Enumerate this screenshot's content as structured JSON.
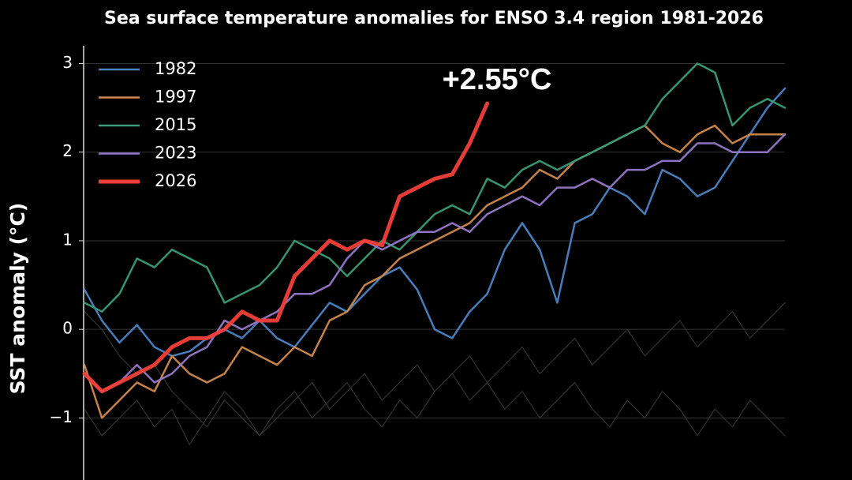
{
  "chart_data": {
    "type": "line",
    "title": "Sea surface temperature anomalies for ENSO 3.4 region 1981-2026",
    "y_label": "SST anomaly (°C)",
    "annotation": "+2.55°C",
    "ylim": [
      -1.7,
      3.2
    ],
    "yticks": [
      {
        "value": -1,
        "label": "−1"
      },
      0,
      1,
      2,
      3
    ],
    "grid": true,
    "legend": "upper left",
    "series": [
      {
        "color": "#3a3a3a",
        "linewidth": 1,
        "values": [
          -0.9,
          -1.2,
          -1.0,
          -0.8,
          -1.1,
          -0.9,
          -1.3,
          -1.0,
          -0.7,
          -0.9,
          -1.2,
          -1.0,
          -0.8,
          -0.6,
          -0.9,
          -0.7,
          -0.5,
          -0.8,
          -0.6,
          -0.4,
          -0.7,
          -0.5,
          -0.3,
          -0.6,
          -0.4,
          -0.2,
          -0.5,
          -0.3,
          -0.1,
          -0.4,
          -0.2,
          0.0,
          -0.3,
          -0.1,
          0.1,
          -0.2,
          0.0,
          0.2,
          -0.1,
          0.1,
          0.3
        ]
      },
      {
        "color": "#3a3a3a",
        "linewidth": 1,
        "values": [
          0.2,
          0.0,
          -0.3,
          -0.5,
          -0.4,
          -0.7,
          -0.9,
          -1.1,
          -0.8,
          -1.0,
          -1.2,
          -0.9,
          -0.7,
          -1.0,
          -0.8,
          -0.6,
          -0.9,
          -1.1,
          -0.8,
          -1.0,
          -0.7,
          -0.5,
          -0.8,
          -0.6,
          -0.9,
          -0.7,
          -1.0,
          -0.8,
          -0.6,
          -0.9,
          -1.1,
          -0.8,
          -1.0,
          -0.7,
          -0.9,
          -1.2,
          -0.9,
          -1.1,
          -0.8,
          -1.0,
          -1.2
        ]
      },
      {
        "name": "1982",
        "color": "#4c84c4",
        "linewidth": 2.5,
        "values": [
          0.45,
          0.1,
          -0.15,
          0.05,
          -0.2,
          -0.3,
          -0.25,
          -0.1,
          0.0,
          -0.1,
          0.1,
          -0.1,
          -0.2,
          0.05,
          0.3,
          0.2,
          0.4,
          0.6,
          0.7,
          0.45,
          0.0,
          -0.1,
          0.2,
          0.4,
          0.9,
          1.2,
          0.9,
          0.3,
          1.2,
          1.3,
          1.6,
          1.5,
          1.3,
          1.8,
          1.7,
          1.5,
          1.6,
          1.9,
          2.2,
          2.5,
          2.72
        ]
      },
      {
        "name": "1997",
        "color": "#d08a4c",
        "linewidth": 2.5,
        "values": [
          -0.4,
          -1.0,
          -0.8,
          -0.6,
          -0.7,
          -0.3,
          -0.5,
          -0.6,
          -0.5,
          -0.2,
          -0.3,
          -0.4,
          -0.2,
          -0.3,
          0.1,
          0.2,
          0.5,
          0.6,
          0.8,
          0.9,
          1.0,
          1.1,
          1.2,
          1.4,
          1.5,
          1.6,
          1.8,
          1.7,
          1.9,
          2.0,
          2.1,
          2.2,
          2.3,
          2.1,
          2.0,
          2.2,
          2.3,
          2.1,
          2.2,
          2.2,
          2.2
        ]
      },
      {
        "name": "2015",
        "color": "#3a9c78",
        "linewidth": 2.5,
        "values": [
          0.3,
          0.2,
          0.4,
          0.8,
          0.7,
          0.9,
          0.8,
          0.7,
          0.3,
          0.4,
          0.5,
          0.7,
          1.0,
          0.9,
          0.8,
          0.6,
          0.8,
          1.0,
          0.9,
          1.1,
          1.3,
          1.4,
          1.3,
          1.7,
          1.6,
          1.8,
          1.9,
          1.8,
          1.9,
          2.0,
          2.1,
          2.2,
          2.3,
          2.6,
          2.8,
          3.0,
          2.9,
          2.3,
          2.5,
          2.6,
          2.5
        ]
      },
      {
        "name": "2023",
        "color": "#9678c8",
        "linewidth": 2.5,
        "values": [
          -0.5,
          -0.7,
          -0.6,
          -0.4,
          -0.6,
          -0.5,
          -0.3,
          -0.2,
          0.1,
          0.0,
          0.1,
          0.2,
          0.4,
          0.4,
          0.5,
          0.8,
          1.0,
          0.9,
          1.0,
          1.1,
          1.1,
          1.2,
          1.1,
          1.3,
          1.4,
          1.5,
          1.4,
          1.6,
          1.6,
          1.7,
          1.6,
          1.8,
          1.8,
          1.9,
          1.9,
          2.1,
          2.1,
          2.0,
          2.0,
          2.0,
          2.2
        ]
      },
      {
        "name": "2026",
        "color": "#f0403a",
        "linewidth": 5,
        "values": [
          -0.5,
          -0.7,
          -0.6,
          -0.5,
          -0.4,
          -0.2,
          -0.1,
          -0.1,
          0.0,
          0.2,
          0.1,
          0.1,
          0.6,
          0.8,
          1.0,
          0.9,
          1.0,
          0.95,
          1.5,
          1.6,
          1.7,
          1.75,
          2.1,
          2.55,
          null,
          null,
          null,
          null,
          null,
          null,
          null,
          null,
          null,
          null,
          null,
          null,
          null,
          null,
          null,
          null,
          null
        ]
      }
    ]
  }
}
